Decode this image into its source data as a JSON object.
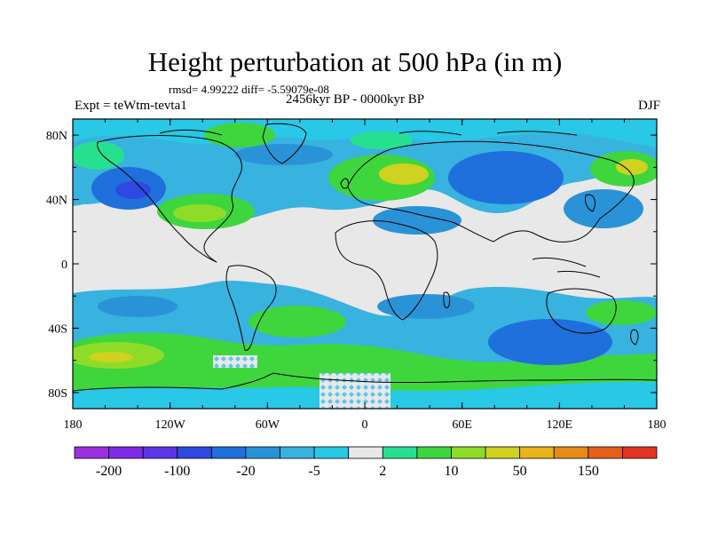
{
  "figure": {
    "title": "Height perturbation at 500 hPa (in m)",
    "rmsd_line": "rmsd= 4.99222 diff= -5.59079e-08",
    "left_label": "Expt = teWtm-tevta1",
    "center_label": "2456kyr BP - 0000kyr BP",
    "right_label": "DJF"
  },
  "axes": {
    "lon_ticks": [
      "180",
      "120W",
      "60W",
      "0",
      "60E",
      "120E",
      "180"
    ],
    "lat_ticks": [
      "80N",
      "40N",
      "0",
      "40S",
      "80S"
    ],
    "lon_values": [
      -180,
      -120,
      -60,
      0,
      60,
      120,
      180
    ],
    "lat_values": [
      80,
      40,
      0,
      -40,
      -80
    ],
    "lon_range": [
      -180,
      180
    ],
    "lat_range": [
      -90,
      90
    ]
  },
  "colorbar": {
    "colors": [
      "#9b30e0",
      "#7e2be8",
      "#5b35e8",
      "#2f49e0",
      "#1f6fdc",
      "#2a93d8",
      "#38b2df",
      "#28c8e6",
      "#e8e8e8",
      "#27e08f",
      "#3fd63d",
      "#8fdc28",
      "#cfd21e",
      "#e8b419",
      "#e88a17",
      "#e55f1a",
      "#e53323"
    ],
    "labels": [
      "-200",
      "-100",
      "-20",
      "-5",
      "2",
      "10",
      "50",
      "150"
    ]
  },
  "colors": {
    "neutral": "#e8e8e8",
    "light_blue": "#38b2df",
    "mid_blue": "#1f6fdc",
    "cyan": "#28c8e6",
    "green": "#3fd63d",
    "teal_green": "#27e08f",
    "yellow_green": "#cfd21e",
    "coast": "#000000"
  }
}
